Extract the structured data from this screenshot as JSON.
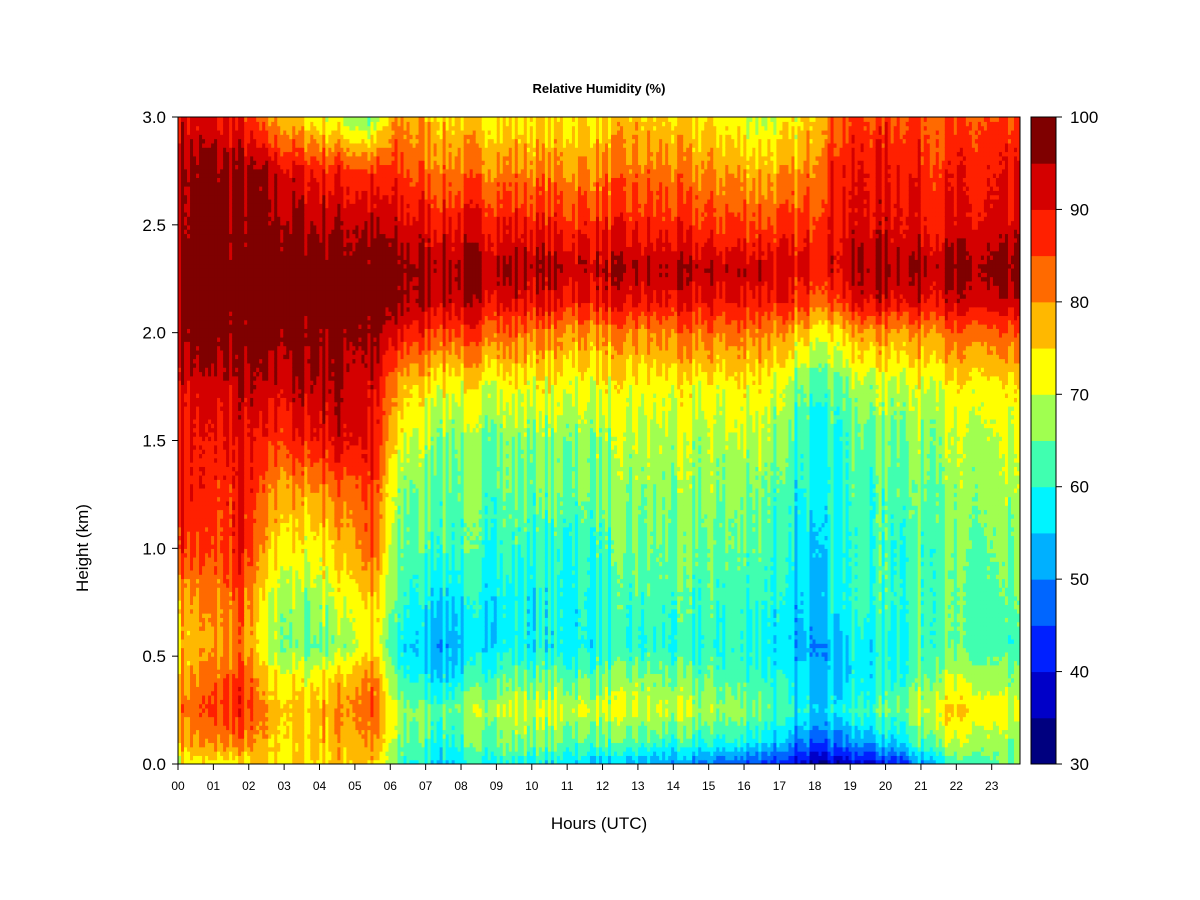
{
  "chart_data": {
    "type": "heatmap",
    "title": "Relative Humidity (%)",
    "xlabel": "Hours (UTC)",
    "ylabel": "Height (km)",
    "xlim": [
      0,
      23.8
    ],
    "ylim": [
      0.0,
      3.0
    ],
    "x_tick_labels": [
      "00",
      "01",
      "02",
      "03",
      "04",
      "05",
      "06",
      "07",
      "08",
      "09",
      "10",
      "11",
      "12",
      "13",
      "14",
      "15",
      "16",
      "17",
      "18",
      "19",
      "20",
      "21",
      "22",
      "23"
    ],
    "y_tick_labels": [
      "0.0",
      "0.5",
      "1.0",
      "1.5",
      "2.0",
      "2.5",
      "3.0"
    ],
    "y_ticks": [
      0.0,
      0.5,
      1.0,
      1.5,
      2.0,
      2.5,
      3.0
    ],
    "colorbar": {
      "range": [
        30,
        100
      ],
      "tick_labels": [
        "30",
        "40",
        "50",
        "60",
        "70",
        "80",
        "90",
        "100"
      ],
      "tick_values": [
        30,
        40,
        50,
        60,
        70,
        80,
        90,
        100
      ],
      "levels": [
        {
          "from": 30,
          "to": 35,
          "color": "#00007f"
        },
        {
          "from": 35,
          "to": 40,
          "color": "#0000c8"
        },
        {
          "from": 40,
          "to": 45,
          "color": "#0020ff"
        },
        {
          "from": 45,
          "to": 50,
          "color": "#0066ff"
        },
        {
          "from": 50,
          "to": 55,
          "color": "#00b0ff"
        },
        {
          "from": 55,
          "to": 60,
          "color": "#00f4ff"
        },
        {
          "from": 60,
          "to": 65,
          "color": "#40ffb0"
        },
        {
          "from": 65,
          "to": 70,
          "color": "#a0ff50"
        },
        {
          "from": 70,
          "to": 75,
          "color": "#ffff00"
        },
        {
          "from": 75,
          "to": 80,
          "color": "#ffb800"
        },
        {
          "from": 80,
          "to": 85,
          "color": "#ff6a00"
        },
        {
          "from": 85,
          "to": 90,
          "color": "#ff2000"
        },
        {
          "from": 90,
          "to": 95,
          "color": "#d40000"
        },
        {
          "from": 95,
          "to": 100,
          "color": "#7f0000"
        }
      ]
    },
    "height_km": [
      0.0,
      0.1,
      0.25,
      0.4,
      0.55,
      0.75,
      1.0,
      1.25,
      1.5,
      1.75,
      2.0,
      2.15,
      2.3,
      2.5,
      2.75,
      3.0
    ],
    "hours": [
      0,
      1,
      1.8,
      2.5,
      3.5,
      4.5,
      5.5,
      6.2,
      7.5,
      9,
      11,
      13,
      15,
      16.5,
      17.5,
      18.5,
      19.5,
      20.5,
      21.5,
      22.5,
      23.8
    ],
    "rh_grid": [
      [
        72,
        72,
        72,
        75,
        75,
        76,
        76,
        62,
        55,
        60,
        56,
        52,
        48,
        45,
        38,
        36,
        38,
        44,
        58,
        62,
        62
      ],
      [
        78,
        80,
        82,
        76,
        75,
        78,
        80,
        66,
        60,
        66,
        64,
        62,
        60,
        58,
        48,
        48,
        52,
        58,
        68,
        68,
        64
      ],
      [
        82,
        85,
        88,
        78,
        76,
        80,
        84,
        68,
        64,
        70,
        70,
        70,
        68,
        66,
        58,
        58,
        62,
        66,
        74,
        74,
        68
      ],
      [
        78,
        82,
        86,
        74,
        72,
        76,
        82,
        62,
        56,
        64,
        64,
        66,
        64,
        62,
        56,
        54,
        58,
        62,
        68,
        68,
        64
      ],
      [
        76,
        78,
        82,
        68,
        64,
        66,
        74,
        58,
        52,
        58,
        58,
        60,
        60,
        60,
        52,
        54,
        58,
        60,
        64,
        62,
        60
      ],
      [
        78,
        80,
        84,
        70,
        66,
        70,
        76,
        62,
        56,
        58,
        58,
        62,
        62,
        62,
        54,
        58,
        62,
        62,
        64,
        62,
        62
      ],
      [
        88,
        84,
        90,
        76,
        72,
        76,
        84,
        64,
        62,
        62,
        60,
        64,
        64,
        64,
        56,
        58,
        62,
        62,
        64,
        64,
        64
      ],
      [
        90,
        86,
        90,
        80,
        78,
        82,
        86,
        66,
        64,
        64,
        64,
        66,
        66,
        66,
        58,
        60,
        62,
        64,
        66,
        66,
        66
      ],
      [
        90,
        88,
        90,
        86,
        88,
        92,
        90,
        72,
        66,
        66,
        66,
        68,
        68,
        70,
        60,
        60,
        64,
        66,
        68,
        68,
        68
      ],
      [
        92,
        92,
        94,
        92,
        94,
        96,
        92,
        78,
        72,
        72,
        72,
        72,
        72,
        74,
        64,
        64,
        68,
        70,
        72,
        72,
        72
      ],
      [
        97,
        98,
        98,
        98,
        98,
        98,
        96,
        90,
        86,
        84,
        80,
        80,
        82,
        82,
        76,
        74,
        80,
        80,
        82,
        82,
        82
      ],
      [
        98,
        99,
        99,
        99,
        99,
        99,
        98,
        96,
        94,
        92,
        90,
        90,
        90,
        90,
        86,
        86,
        92,
        92,
        92,
        92,
        92
      ],
      [
        98,
        99,
        99,
        99,
        99,
        99,
        98,
        97,
        96,
        96,
        94,
        94,
        94,
        94,
        90,
        92,
        96,
        96,
        96,
        96,
        96
      ],
      [
        97,
        98,
        98,
        97,
        96,
        95,
        94,
        92,
        90,
        90,
        88,
        88,
        86,
        86,
        86,
        90,
        92,
        92,
        90,
        90,
        90
      ],
      [
        96,
        97,
        96,
        94,
        90,
        88,
        86,
        86,
        82,
        82,
        80,
        82,
        80,
        78,
        78,
        88,
        90,
        90,
        88,
        88,
        88
      ],
      [
        92,
        90,
        88,
        80,
        74,
        70,
        64,
        80,
        76,
        74,
        74,
        76,
        74,
        70,
        72,
        84,
        86,
        86,
        84,
        84,
        84
      ]
    ]
  }
}
